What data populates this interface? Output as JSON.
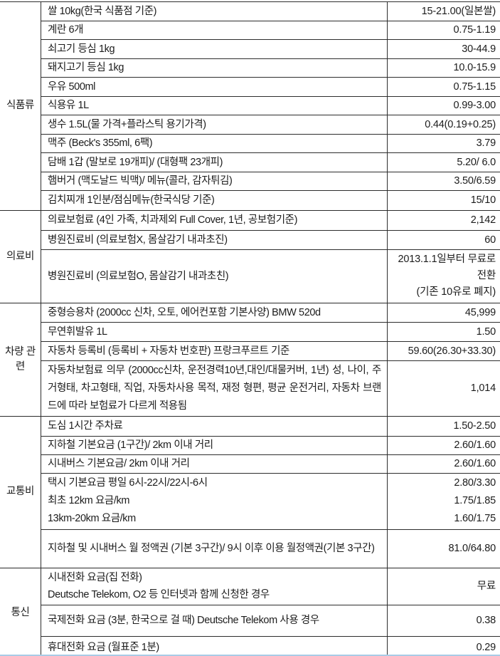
{
  "table": {
    "sections": [
      {
        "category": "식품류",
        "rows": [
          {
            "item": [
              "쌀 10kg(한국 식품점 기준)"
            ],
            "price": [
              "15-21.00(일본쌀)"
            ]
          },
          {
            "item": [
              "계란 6개"
            ],
            "price": [
              "0.75-1.19"
            ]
          },
          {
            "item": [
              "쇠고기 등심 1kg"
            ],
            "price": [
              "30-44.9"
            ]
          },
          {
            "item": [
              "돼지고기 등심 1kg"
            ],
            "price": [
              "10.0-15.9"
            ]
          },
          {
            "item": [
              "우유 500ml"
            ],
            "price": [
              "0.75-1.15"
            ]
          },
          {
            "item": [
              "식용유 1L"
            ],
            "price": [
              "0.99-3.00"
            ]
          },
          {
            "item": [
              "생수 1.5L(물 가격+플라스틱 용기가격)"
            ],
            "price": [
              "0.44(0.19+0.25)"
            ]
          },
          {
            "item": [
              "맥주 (Beck's 355ml, 6팩)"
            ],
            "price": [
              "3.79"
            ]
          },
          {
            "item": [
              "담배 1갑 (말보로 19개피)/ (대형팩 23개피)"
            ],
            "price": [
              "5.20/ 6.0"
            ]
          },
          {
            "item": [
              "햄버거 (맥도날드 빅맥)/ 메뉴(콜라, 감자튀김)"
            ],
            "price": [
              "3.50/6.59"
            ]
          },
          {
            "item": [
              "김치찌개 1인분/점심메뉴(한국식당 기준)"
            ],
            "price": [
              "15/10"
            ]
          }
        ]
      },
      {
        "category": "의료비",
        "rows": [
          {
            "item": [
              "의료보험료 (4인 가족, 치과제외 Full Cover, 1년, 공보험기준)"
            ],
            "price": [
              "2,142"
            ]
          },
          {
            "item": [
              "병원진료비 (의료보험X, 몸살감기 내과초진)"
            ],
            "price": [
              "60"
            ]
          },
          {
            "item": [
              "병원진료비 (의료보험O, 몸살감기 내과초친)"
            ],
            "price": [
              "2013.1.1일부터 무료로",
              "전환",
              "(기존 10유로 폐지)"
            ]
          }
        ]
      },
      {
        "category": "차량 관련",
        "rows": [
          {
            "item": [
              "중형승용차 (2000cc 신차, 오토, 에어컨포함 기본사양) BMW 520d"
            ],
            "price": [
              "45,999"
            ]
          },
          {
            "item": [
              "무연휘발유 1L"
            ],
            "price": [
              "1.50"
            ]
          },
          {
            "item": [
              "자동차 등록비 (등록비 + 자동차 번호판) 프랑크푸르트 기준"
            ],
            "price": [
              "59.60(26.30+33.30)"
            ]
          },
          {
            "item": [
              "자동차보험료 의무 (2000cc신차, 운전경력10년,대인/대물커버, 1년) 성, 나이, 주거형태, 차고형태, 직업, 자동차사용 목적, 재정 형편, 평균 운전거리, 자동차 브랜드에 따라 보험료가 다르게 적용됨"
            ],
            "price": [
              "1,014"
            ]
          }
        ]
      },
      {
        "category": "교통비",
        "rows": [
          {
            "item": [
              "도심 1시간 주차료"
            ],
            "price": [
              "1.50-2.50"
            ]
          },
          {
            "item": [
              "지하철 기본요금 (1구간)/ 2km 이내 거리"
            ],
            "price": [
              "2.60/1.60"
            ]
          },
          {
            "item": [
              "시내버스 기본요금/ 2km 이내 거리"
            ],
            "price": [
              "2.60/1.60"
            ]
          },
          {
            "item": [
              "택시 기본요금 평일 6시-22시/22시-6시",
              "최초 12km 요금/km",
              "13km-20km 요금/km"
            ],
            "price": [
              "2.80/3.30",
              "1.75/1.85",
              "1.60/1.75"
            ]
          },
          {
            "item": [
              "지하철 및 시내버스 월 정액권 (기본 3구간)/ 9시 이후 이용 월정액권(기본 3구간)"
            ],
            "price": [
              "81.0/64.80"
            ]
          }
        ]
      },
      {
        "category": "통신",
        "rows": [
          {
            "item": [
              "시내전화 요금(집 전화)",
              "Deutsche Telekom, O2 등 인터넷과 함께 신청한 경우"
            ],
            "price": [
              "무료"
            ]
          },
          {
            "item": [
              "국제전화 요금 (3분, 한국으로 걸 때) Deutsche Telekom 사용 경우"
            ],
            "price": [
              "0.38"
            ]
          },
          {
            "item": [
              "휴대전화 요금 (월표준 1분)"
            ],
            "price": [
              "0.29"
            ]
          }
        ]
      }
    ]
  }
}
